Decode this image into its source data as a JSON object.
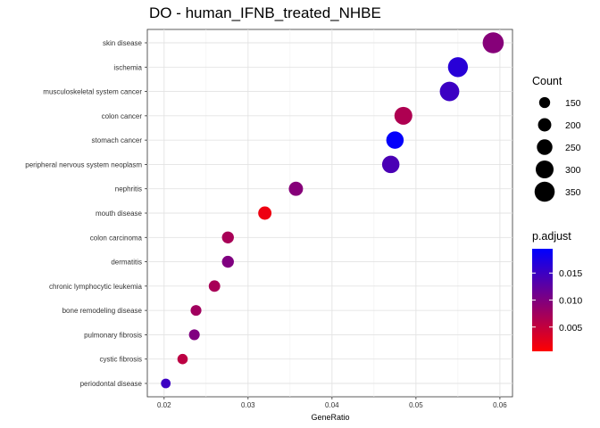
{
  "chart_data": {
    "type": "scatter",
    "title": "DO - human_IFNB_treated_NHBE",
    "xlabel": "GeneRatio",
    "ylabel": "",
    "xlim": [
      0.018,
      0.0615
    ],
    "x_ticks": [
      0.02,
      0.03,
      0.04,
      0.05,
      0.06
    ],
    "x_tick_labels": [
      "0.02",
      "0.03",
      "0.04",
      "0.05",
      "0.06"
    ],
    "grid": true,
    "legend_position": "right",
    "categories": [
      "skin disease",
      "ischemia",
      "musculoskeletal system cancer",
      "colon cancer",
      "stomach cancer",
      "peripheral nervous system neoplasm",
      "nephritis",
      "mouth disease",
      "colon carcinoma",
      "dermatitis",
      "chronic lymphocytic leukemia",
      "bone remodeling disease",
      "pulmonary fibrosis",
      "cystic fibrosis",
      "periodontal disease"
    ],
    "points": [
      {
        "category": "skin disease",
        "gene_ratio": 0.0592,
        "count": 370,
        "p_adjust": 0.0095
      },
      {
        "category": "ischemia",
        "gene_ratio": 0.055,
        "count": 345,
        "p_adjust": 0.0165
      },
      {
        "category": "musculoskeletal system cancer",
        "gene_ratio": 0.054,
        "count": 335,
        "p_adjust": 0.015
      },
      {
        "category": "colon cancer",
        "gene_ratio": 0.0485,
        "count": 300,
        "p_adjust": 0.0065
      },
      {
        "category": "stomach cancer",
        "gene_ratio": 0.0475,
        "count": 290,
        "p_adjust": 0.0192
      },
      {
        "category": "peripheral nervous system neoplasm",
        "gene_ratio": 0.047,
        "count": 290,
        "p_adjust": 0.014
      },
      {
        "category": "nephritis",
        "gene_ratio": 0.0357,
        "count": 220,
        "p_adjust": 0.0095
      },
      {
        "category": "mouth disease",
        "gene_ratio": 0.032,
        "count": 200,
        "p_adjust": 0.0018
      },
      {
        "category": "colon carcinoma",
        "gene_ratio": 0.0276,
        "count": 170,
        "p_adjust": 0.007
      },
      {
        "category": "dermatitis",
        "gene_ratio": 0.0276,
        "count": 170,
        "p_adjust": 0.01
      },
      {
        "category": "chronic lymphocytic leukemia",
        "gene_ratio": 0.026,
        "count": 160,
        "p_adjust": 0.007
      },
      {
        "category": "bone remodeling disease",
        "gene_ratio": 0.0238,
        "count": 145,
        "p_adjust": 0.0075
      },
      {
        "category": "pulmonary fibrosis",
        "gene_ratio": 0.0236,
        "count": 145,
        "p_adjust": 0.01
      },
      {
        "category": "cystic fibrosis",
        "gene_ratio": 0.0222,
        "count": 135,
        "p_adjust": 0.0055
      },
      {
        "category": "periodontal disease",
        "gene_ratio": 0.0202,
        "count": 120,
        "p_adjust": 0.015
      }
    ],
    "size_legend": {
      "title": "Count",
      "values": [
        150,
        200,
        250,
        300,
        350
      ],
      "labels": [
        "150",
        "200",
        "250",
        "300",
        "350"
      ]
    },
    "color_legend": {
      "title": "p.adjust",
      "range": [
        0.0005,
        0.0195
      ],
      "ticks": [
        0.005,
        0.01,
        0.015
      ],
      "labels": [
        "0.005",
        "0.010",
        "0.015"
      ],
      "low_color": "#FF0000",
      "high_color": "#0000FF"
    }
  }
}
